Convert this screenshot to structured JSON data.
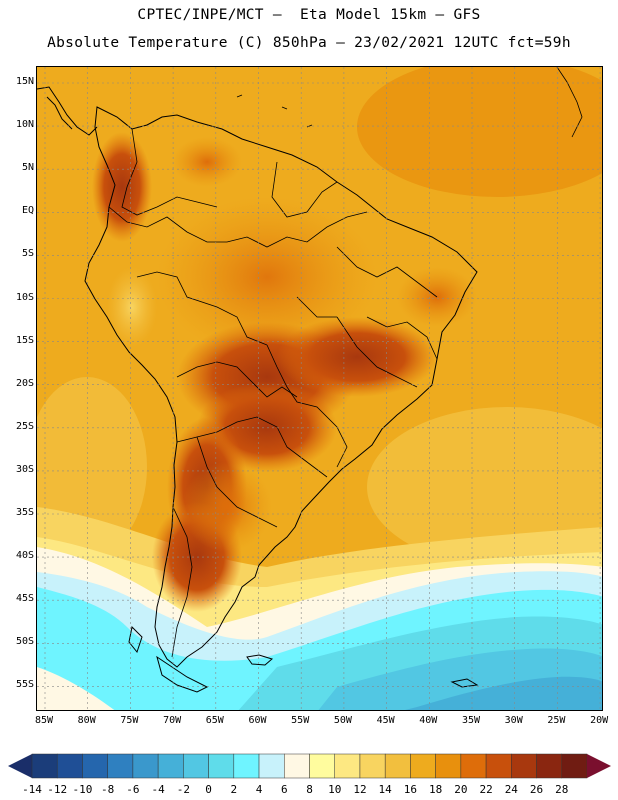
{
  "header": {
    "line1": "CPTEC/INPE/MCT –  Eta Model 15km – GFS",
    "line2": "Absolute Temperature (C) 850hPa – 23/02/2021 12UTC fct=59h"
  },
  "map": {
    "lat_ticks": [
      "15N",
      "10N",
      "5N",
      "EQ",
      "5S",
      "10S",
      "15S",
      "20S",
      "25S",
      "30S",
      "35S",
      "40S",
      "45S",
      "50S",
      "55S"
    ],
    "lon_ticks": [
      "85W",
      "80W",
      "75W",
      "70W",
      "65W",
      "60W",
      "55W",
      "50W",
      "45W",
      "40W",
      "35W",
      "30W",
      "25W",
      "20W"
    ]
  },
  "legend": {
    "labels": [
      "-14",
      "-12",
      "-10",
      "-8",
      "-6",
      "-4",
      "-2",
      "0",
      "2",
      "4",
      "6",
      "8",
      "10",
      "12",
      "14",
      "16",
      "18",
      "20",
      "22",
      "24",
      "26",
      "28"
    ],
    "colors": [
      "#1b3d7a",
      "#1f4f96",
      "#2566ad",
      "#2f80c0",
      "#3a98cc",
      "#45b0d8",
      "#52c7e3",
      "#5fdcea",
      "#6ff4ff",
      "#c8f2fb",
      "#fff8e4",
      "#fffc9e",
      "#fde882",
      "#f8d460",
      "#f2bf3e",
      "#eeab1e",
      "#e8900d",
      "#de6d0a",
      "#c8500c",
      "#a8380e",
      "#8a2610",
      "#701c12"
    ],
    "under_color": "#1a2e69",
    "over_color": "#7a0f2e"
  }
}
